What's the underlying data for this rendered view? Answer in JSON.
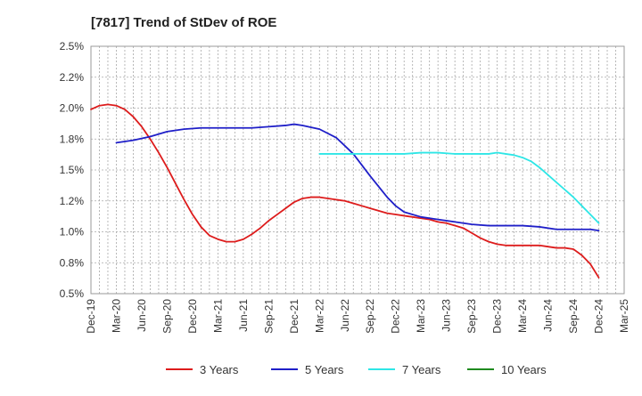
{
  "chart_data": {
    "type": "line",
    "title": "[7817]  Trend of StDev of ROE",
    "xlabel": "",
    "ylabel": "",
    "ylim": [
      0.5,
      2.5
    ],
    "y_ticks": [
      "0.5%",
      "0.8%",
      "1.0%",
      "1.2%",
      "1.5%",
      "1.8%",
      "2.0%",
      "2.2%",
      "2.5%"
    ],
    "x_ticks": [
      "Dec-19",
      "Mar-20",
      "Jun-20",
      "Sep-20",
      "Dec-20",
      "Mar-21",
      "Jun-21",
      "Sep-21",
      "Dec-21",
      "Mar-22",
      "Jun-22",
      "Sep-22",
      "Dec-22",
      "Mar-23",
      "Jun-23",
      "Sep-23",
      "Dec-23",
      "Mar-24",
      "Jun-24",
      "Sep-24",
      "Dec-24",
      "Mar-25"
    ],
    "grid": true,
    "legend_position": "bottom",
    "series": [
      {
        "name": "3 Years",
        "color": "#dd1c1c",
        "x": [
          "Dec-19",
          "Jan-20",
          "Feb-20",
          "Mar-20",
          "Apr-20",
          "May-20",
          "Jun-20",
          "Jul-20",
          "Aug-20",
          "Sep-20",
          "Oct-20",
          "Nov-20",
          "Dec-20",
          "Jan-21",
          "Feb-21",
          "Mar-21",
          "Apr-21",
          "May-21",
          "Jun-21",
          "Jul-21",
          "Aug-21",
          "Sep-21",
          "Oct-21",
          "Nov-21",
          "Dec-21",
          "Jan-22",
          "Feb-22",
          "Mar-22",
          "Apr-22",
          "May-22",
          "Jun-22",
          "Jul-22",
          "Aug-22",
          "Sep-22",
          "Oct-22",
          "Nov-22",
          "Dec-22",
          "Jan-23",
          "Feb-23",
          "Mar-23",
          "Apr-23",
          "May-23",
          "Jun-23",
          "Jul-23",
          "Aug-23",
          "Sep-23",
          "Oct-23",
          "Nov-23",
          "Dec-23",
          "Jan-24",
          "Feb-24",
          "Mar-24",
          "Apr-24",
          "May-24",
          "Jun-24",
          "Jul-24",
          "Aug-24",
          "Sep-24",
          "Oct-24",
          "Nov-24",
          "Dec-24"
        ],
        "values": [
          1.99,
          2.02,
          2.03,
          2.02,
          1.99,
          1.93,
          1.85,
          1.75,
          1.64,
          1.52,
          1.39,
          1.26,
          1.14,
          1.04,
          0.97,
          0.94,
          0.92,
          0.92,
          0.94,
          0.98,
          1.03,
          1.09,
          1.14,
          1.19,
          1.24,
          1.27,
          1.28,
          1.28,
          1.27,
          1.26,
          1.25,
          1.23,
          1.21,
          1.19,
          1.17,
          1.15,
          1.14,
          1.13,
          1.12,
          1.11,
          1.1,
          1.08,
          1.07,
          1.05,
          1.03,
          0.99,
          0.95,
          0.92,
          0.9,
          0.89,
          0.89,
          0.89,
          0.89,
          0.89,
          0.88,
          0.87,
          0.87,
          0.86,
          0.81,
          0.74,
          0.63
        ]
      },
      {
        "name": "5 Years",
        "color": "#1f1fc8",
        "x": [
          "Mar-20",
          "May-20",
          "Jul-20",
          "Sep-20",
          "Nov-20",
          "Jan-21",
          "Mar-21",
          "May-21",
          "Jul-21",
          "Sep-21",
          "Nov-21",
          "Dec-21",
          "Jan-22",
          "Mar-22",
          "May-22",
          "Jul-22",
          "Sep-22",
          "Nov-22",
          "Dec-22",
          "Jan-23",
          "Mar-23",
          "May-23",
          "Jul-23",
          "Sep-23",
          "Nov-23",
          "Jan-24",
          "Mar-24",
          "May-24",
          "Jul-24",
          "Sep-24",
          "Nov-24",
          "Dec-24"
        ],
        "values": [
          1.72,
          1.74,
          1.77,
          1.81,
          1.83,
          1.84,
          1.84,
          1.84,
          1.84,
          1.85,
          1.86,
          1.87,
          1.86,
          1.83,
          1.76,
          1.63,
          1.45,
          1.28,
          1.21,
          1.16,
          1.12,
          1.1,
          1.08,
          1.06,
          1.05,
          1.05,
          1.05,
          1.04,
          1.02,
          1.02,
          1.02,
          1.01
        ]
      },
      {
        "name": "7 Years",
        "color": "#2ee6e6",
        "x": [
          "Mar-22",
          "May-22",
          "Jul-22",
          "Sep-22",
          "Nov-22",
          "Jan-23",
          "Mar-23",
          "May-23",
          "Jul-23",
          "Sep-23",
          "Nov-23",
          "Dec-23",
          "Jan-24",
          "Feb-24",
          "Mar-24",
          "Apr-24",
          "May-24",
          "Jun-24",
          "Jul-24",
          "Aug-24",
          "Sep-24",
          "Oct-24",
          "Nov-24",
          "Dec-24"
        ],
        "values": [
          1.63,
          1.63,
          1.63,
          1.63,
          1.63,
          1.63,
          1.64,
          1.64,
          1.63,
          1.63,
          1.63,
          1.64,
          1.63,
          1.62,
          1.6,
          1.57,
          1.52,
          1.46,
          1.4,
          1.34,
          1.28,
          1.21,
          1.14,
          1.07
        ]
      },
      {
        "name": "10 Years",
        "color": "#1f8a1f",
        "x": [],
        "values": []
      }
    ]
  }
}
